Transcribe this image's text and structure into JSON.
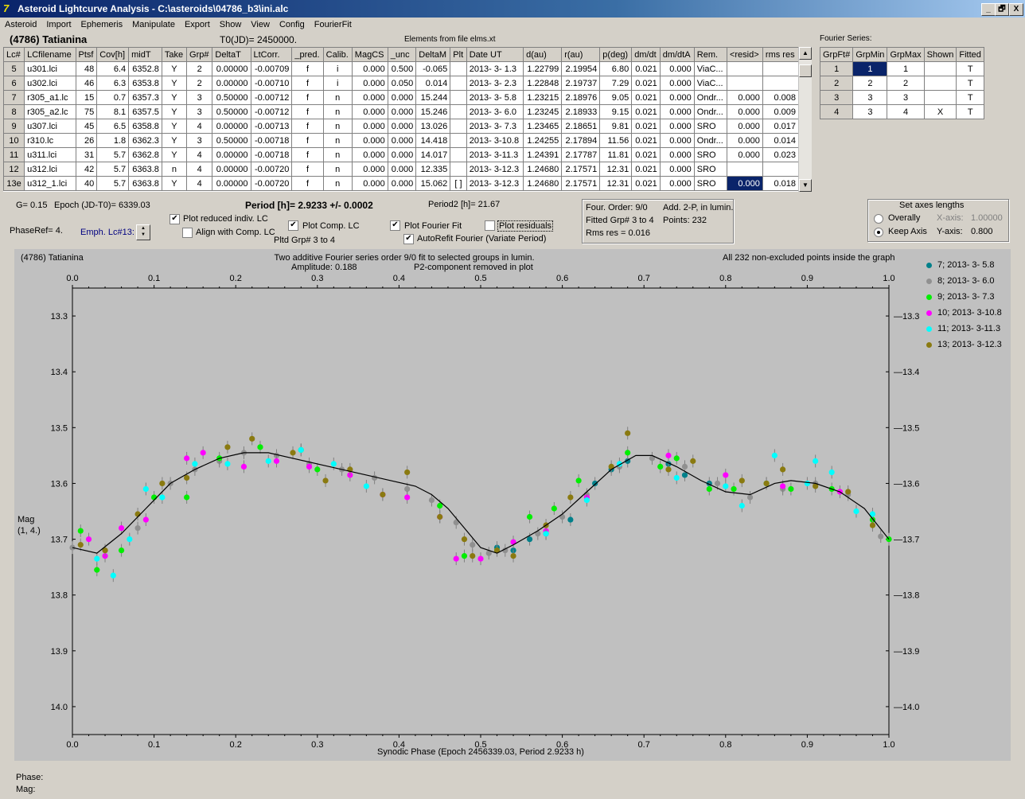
{
  "window": {
    "title": "Asteroid Lightcurve Analysis - C:\\asteroids\\04786_b3\\ini.alc",
    "min": "_",
    "restore": "🗗",
    "close": "X"
  },
  "menu": [
    "Asteroid",
    "Import",
    "Ephemeris",
    "Manipulate",
    "Export",
    "Show",
    "View",
    "Config",
    "FourierFit"
  ],
  "header": {
    "asteroid": "(4786) Tatianina",
    "t0": "T0(JD)= 2450000.",
    "elements": "Elements from file elms.xt",
    "fourier_series": "Fourier Series:"
  },
  "lc_table": {
    "columns": [
      "Lc#",
      "LCfilename",
      "Ptsf",
      "Cov[h]",
      "midT",
      "Take",
      "Grp#",
      "DeltaT",
      "LtCorr.",
      "_pred.",
      "Calib.",
      "MagCS",
      "_unc",
      "DeltaM",
      "Plt",
      "Date UT",
      "d(au)",
      "r(au)",
      "p(deg)",
      "dm/dt",
      "dm/dtA",
      "Rem.",
      "<resid>",
      "rms res"
    ],
    "rows": [
      [
        "5",
        "u301.lci",
        "48",
        "6.4",
        "6352.8",
        "Y",
        "2",
        "0.00000",
        "-0.00709",
        "f",
        "i",
        "0.000",
        "0.500",
        "-0.065",
        "",
        "2013- 3- 1.3",
        "1.22799",
        "2.19954",
        "6.80",
        "0.021",
        "0.000",
        "ViaC...",
        "",
        ""
      ],
      [
        "6",
        "u302.lci",
        "46",
        "6.3",
        "6353.8",
        "Y",
        "2",
        "0.00000",
        "-0.00710",
        "f",
        "i",
        "0.000",
        "0.050",
        "0.014",
        "",
        "2013- 3- 2.3",
        "1.22848",
        "2.19737",
        "7.29",
        "0.021",
        "0.000",
        "ViaC...",
        "",
        ""
      ],
      [
        "7",
        "r305_a1.lc",
        "15",
        "0.7",
        "6357.3",
        "Y",
        "3",
        "0.50000",
        "-0.00712",
        "f",
        "n",
        "0.000",
        "0.000",
        "15.244",
        "",
        "2013- 3- 5.8",
        "1.23215",
        "2.18976",
        "9.05",
        "0.021",
        "0.000",
        "Ondr...",
        "0.000",
        "0.008"
      ],
      [
        "8",
        "r305_a2.lc",
        "75",
        "8.1",
        "6357.5",
        "Y",
        "3",
        "0.50000",
        "-0.00712",
        "f",
        "n",
        "0.000",
        "0.000",
        "15.246",
        "",
        "2013- 3- 6.0",
        "1.23245",
        "2.18933",
        "9.15",
        "0.021",
        "0.000",
        "Ondr...",
        "0.000",
        "0.009"
      ],
      [
        "9",
        "u307.lci",
        "45",
        "6.5",
        "6358.8",
        "Y",
        "4",
        "0.00000",
        "-0.00713",
        "f",
        "n",
        "0.000",
        "0.000",
        "13.026",
        "",
        "2013- 3- 7.3",
        "1.23465",
        "2.18651",
        "9.81",
        "0.021",
        "0.000",
        "SRO",
        "0.000",
        "0.017"
      ],
      [
        "10",
        "r310.lc",
        "26",
        "1.8",
        "6362.3",
        "Y",
        "3",
        "0.50000",
        "-0.00718",
        "f",
        "n",
        "0.000",
        "0.000",
        "14.418",
        "",
        "2013- 3-10.8",
        "1.24255",
        "2.17894",
        "11.56",
        "0.021",
        "0.000",
        "Ondr...",
        "0.000",
        "0.014"
      ],
      [
        "11",
        "u311.lci",
        "31",
        "5.7",
        "6362.8",
        "Y",
        "4",
        "0.00000",
        "-0.00718",
        "f",
        "n",
        "0.000",
        "0.000",
        "14.017",
        "",
        "2013- 3-11.3",
        "1.24391",
        "2.17787",
        "11.81",
        "0.021",
        "0.000",
        "SRO",
        "0.000",
        "0.023"
      ],
      [
        "12",
        "u312.lci",
        "42",
        "5.7",
        "6363.8",
        "n",
        "4",
        "0.00000",
        "-0.00720",
        "f",
        "n",
        "0.000",
        "0.000",
        "12.335",
        "",
        "2013- 3-12.3",
        "1.24680",
        "2.17571",
        "12.31",
        "0.021",
        "0.000",
        "SRO",
        "",
        ""
      ],
      [
        "13e",
        "u312_1.lci",
        "40",
        "5.7",
        "6363.8",
        "Y",
        "4",
        "0.00000",
        "-0.00720",
        "f",
        "n",
        "0.000",
        "0.000",
        "15.062",
        "[ ]",
        "2013- 3-12.3",
        "1.24680",
        "2.17571",
        "12.31",
        "0.021",
        "0.000",
        "SRO",
        "0.000",
        "0.018"
      ]
    ]
  },
  "fourier_table": {
    "columns": [
      "GrpFt#",
      "GrpMin",
      "GrpMax",
      "Shown",
      "Fitted"
    ],
    "rows": [
      [
        "1",
        "1",
        "1",
        "",
        "T"
      ],
      [
        "2",
        "2",
        "2",
        "",
        "T"
      ],
      [
        "3",
        "3",
        "3",
        "",
        "T"
      ],
      [
        "4",
        "3",
        "4",
        "X",
        "T"
      ]
    ]
  },
  "controls": {
    "g": "G= 0.15",
    "epoch": "Epoch (JD-T0)= 6339.03",
    "period": "Period [h]= 2.9233 +/- 0.0002",
    "period2": "Period2 [h]= 21.67",
    "phaseref": "PhaseRef= 4.",
    "emph": "Emph. Lc#13:",
    "plot_reduced": "Plot reduced indiv. LC",
    "align_comp": "Align with Comp. LC",
    "plot_comp": "Plot Comp. LC",
    "pltd_grp": "Pltd Grp#  3  to   4",
    "plot_fourier": "Plot Fourier Fit",
    "autorefit": "AutoRefit Fourier (Variate Period)",
    "plot_resid": "Plot residuals",
    "plot_reduced_checked": true,
    "align_comp_checked": false,
    "plot_comp_checked": true,
    "plot_fourier_checked": true,
    "autorefit_checked": true,
    "plot_resid_checked": false
  },
  "info_box": {
    "four_order": "Four. Order:  9/0",
    "add2p": "Add. 2-P, in lumin.",
    "fitted": "Fitted Grp# 3 to 4",
    "points": "Points: 232",
    "rms": "Rms res     = 0.016"
  },
  "axes_box": {
    "title": "Set axes lengths",
    "overally": "Overally",
    "keep": "Keep Axis",
    "xaxis_label": "X-axis:",
    "xaxis_val": "1.00000",
    "yaxis_label": "Y-axis:",
    "yaxis_val": "0.800",
    "selected": "Keep Axis"
  },
  "plot_header": {
    "left": "(4786) Tatianina",
    "center1": "Two additive Fourier series order 9/0 fit to selected groups in lumin.",
    "center2": "Amplitude: 0.188",
    "center3": "P2-component removed in plot",
    "right": "All 232 non-excluded points inside the graph"
  },
  "status": {
    "phase": "Phase:",
    "mag": "Mag:"
  },
  "chart_data": {
    "type": "scatter",
    "xlabel": "Synodic Phase (Epoch 2456339.03, Period 2.9233 h)",
    "ylabel": "Mag",
    "ylabel2": "(1, 4.)",
    "xlim": [
      0,
      1
    ],
    "ylim": [
      14.05,
      13.25
    ],
    "y_inverted": true,
    "xticks": [
      "0.0",
      "0.1",
      "0.2",
      "0.3",
      "0.4",
      "0.5",
      "0.6",
      "0.7",
      "0.8",
      "0.9",
      "1.0"
    ],
    "yticks": [
      "13.3",
      "13.4",
      "13.5",
      "13.6",
      "13.7",
      "13.8",
      "13.9",
      "14.0"
    ],
    "background": "#c0c0c0",
    "fit_curve": [
      [
        0,
        13.715
      ],
      [
        0.03,
        13.725
      ],
      [
        0.06,
        13.69
      ],
      [
        0.09,
        13.645
      ],
      [
        0.12,
        13.6
      ],
      [
        0.15,
        13.575
      ],
      [
        0.18,
        13.555
      ],
      [
        0.21,
        13.545
      ],
      [
        0.24,
        13.545
      ],
      [
        0.27,
        13.555
      ],
      [
        0.3,
        13.565
      ],
      [
        0.33,
        13.575
      ],
      [
        0.36,
        13.585
      ],
      [
        0.39,
        13.595
      ],
      [
        0.42,
        13.605
      ],
      [
        0.44,
        13.62
      ],
      [
        0.46,
        13.645
      ],
      [
        0.48,
        13.68
      ],
      [
        0.5,
        13.715
      ],
      [
        0.52,
        13.725
      ],
      [
        0.54,
        13.71
      ],
      [
        0.57,
        13.685
      ],
      [
        0.6,
        13.655
      ],
      [
        0.63,
        13.615
      ],
      [
        0.66,
        13.575
      ],
      [
        0.69,
        13.55
      ],
      [
        0.71,
        13.55
      ],
      [
        0.74,
        13.57
      ],
      [
        0.77,
        13.595
      ],
      [
        0.8,
        13.615
      ],
      [
        0.83,
        13.62
      ],
      [
        0.86,
        13.6
      ],
      [
        0.88,
        13.595
      ],
      [
        0.91,
        13.6
      ],
      [
        0.94,
        13.615
      ],
      [
        0.97,
        13.645
      ],
      [
        1.0,
        13.7
      ]
    ],
    "series": [
      {
        "name": "7; 2013- 3- 5.8",
        "color": "#00808a",
        "points": [
          [
            0.52,
            13.715
          ],
          [
            0.54,
            13.72
          ],
          [
            0.56,
            13.7
          ],
          [
            0.58,
            13.69
          ],
          [
            0.61,
            13.665
          ],
          [
            0.64,
            13.6
          ],
          [
            0.66,
            13.575
          ],
          [
            0.68,
            13.56
          ],
          [
            0.73,
            13.565
          ],
          [
            0.75,
            13.585
          ],
          [
            0.78,
            13.6
          ]
        ]
      },
      {
        "name": "8; 2013- 3- 6.0",
        "color": "#909090",
        "points": [
          [
            0.0,
            13.715
          ],
          [
            0.04,
            13.72
          ],
          [
            0.08,
            13.68
          ],
          [
            0.12,
            13.6
          ],
          [
            0.15,
            13.575
          ],
          [
            0.18,
            13.56
          ],
          [
            0.21,
            13.545
          ],
          [
            0.25,
            13.55
          ],
          [
            0.29,
            13.565
          ],
          [
            0.33,
            13.575
          ],
          [
            0.37,
            13.59
          ],
          [
            0.41,
            13.61
          ],
          [
            0.44,
            13.63
          ],
          [
            0.47,
            13.67
          ],
          [
            0.49,
            13.71
          ],
          [
            0.51,
            13.725
          ],
          [
            0.53,
            13.72
          ],
          [
            0.57,
            13.69
          ],
          [
            0.6,
            13.66
          ],
          [
            0.63,
            13.62
          ],
          [
            0.67,
            13.57
          ],
          [
            0.71,
            13.555
          ],
          [
            0.75,
            13.57
          ],
          [
            0.79,
            13.6
          ],
          [
            0.83,
            13.625
          ],
          [
            0.87,
            13.61
          ],
          [
            0.91,
            13.6
          ],
          [
            0.95,
            13.62
          ],
          [
            0.99,
            13.695
          ]
        ]
      },
      {
        "name": "9; 2013- 3- 7.3",
        "color": "#00ee00",
        "points": [
          [
            0.01,
            13.685
          ],
          [
            0.03,
            13.755
          ],
          [
            0.06,
            13.72
          ],
          [
            0.1,
            13.625
          ],
          [
            0.14,
            13.625
          ],
          [
            0.18,
            13.555
          ],
          [
            0.23,
            13.535
          ],
          [
            0.28,
            13.54
          ],
          [
            0.3,
            13.575
          ],
          [
            0.45,
            13.64
          ],
          [
            0.48,
            13.73
          ],
          [
            0.52,
            13.72
          ],
          [
            0.56,
            13.66
          ],
          [
            0.59,
            13.645
          ],
          [
            0.62,
            13.595
          ],
          [
            0.68,
            13.545
          ],
          [
            0.72,
            13.57
          ],
          [
            0.74,
            13.555
          ],
          [
            0.78,
            13.61
          ],
          [
            0.81,
            13.61
          ],
          [
            0.85,
            13.6
          ],
          [
            0.88,
            13.61
          ],
          [
            0.93,
            13.61
          ],
          [
            0.98,
            13.665
          ],
          [
            1.0,
            13.7
          ]
        ]
      },
      {
        "name": "10; 2013- 3-10.8",
        "color": "#ff00ff",
        "points": [
          [
            0.02,
            13.7
          ],
          [
            0.04,
            13.73
          ],
          [
            0.06,
            13.68
          ],
          [
            0.09,
            13.665
          ],
          [
            0.14,
            13.555
          ],
          [
            0.16,
            13.545
          ],
          [
            0.21,
            13.57
          ],
          [
            0.25,
            13.56
          ],
          [
            0.29,
            13.57
          ],
          [
            0.34,
            13.585
          ],
          [
            0.38,
            13.62
          ],
          [
            0.41,
            13.625
          ],
          [
            0.45,
            13.66
          ],
          [
            0.47,
            13.735
          ],
          [
            0.5,
            13.735
          ],
          [
            0.54,
            13.705
          ],
          [
            0.58,
            13.685
          ],
          [
            0.63,
            13.625
          ],
          [
            0.73,
            13.55
          ],
          [
            0.8,
            13.585
          ],
          [
            0.87,
            13.605
          ],
          [
            0.94,
            13.615
          ]
        ]
      },
      {
        "name": "11; 2013- 3-11.3",
        "color": "#00ffff",
        "points": [
          [
            0.03,
            13.735
          ],
          [
            0.05,
            13.765
          ],
          [
            0.07,
            13.7
          ],
          [
            0.09,
            13.61
          ],
          [
            0.11,
            13.625
          ],
          [
            0.15,
            13.565
          ],
          [
            0.19,
            13.565
          ],
          [
            0.24,
            13.56
          ],
          [
            0.28,
            13.54
          ],
          [
            0.32,
            13.565
          ],
          [
            0.36,
            13.605
          ],
          [
            0.58,
            13.69
          ],
          [
            0.63,
            13.63
          ],
          [
            0.67,
            13.565
          ],
          [
            0.74,
            13.59
          ],
          [
            0.8,
            13.605
          ],
          [
            0.82,
            13.64
          ],
          [
            0.86,
            13.55
          ],
          [
            0.9,
            13.6
          ],
          [
            0.91,
            13.56
          ],
          [
            0.93,
            13.58
          ],
          [
            0.96,
            13.65
          ],
          [
            0.98,
            13.655
          ]
        ]
      },
      {
        "name": "13; 2013- 3-12.3",
        "color": "#8a7a10",
        "points": [
          [
            0.01,
            13.71
          ],
          [
            0.04,
            13.72
          ],
          [
            0.08,
            13.655
          ],
          [
            0.11,
            13.6
          ],
          [
            0.14,
            13.59
          ],
          [
            0.19,
            13.535
          ],
          [
            0.22,
            13.52
          ],
          [
            0.27,
            13.545
          ],
          [
            0.31,
            13.595
          ],
          [
            0.34,
            13.575
          ],
          [
            0.38,
            13.62
          ],
          [
            0.41,
            13.58
          ],
          [
            0.45,
            13.66
          ],
          [
            0.48,
            13.7
          ],
          [
            0.49,
            13.73
          ],
          [
            0.52,
            13.72
          ],
          [
            0.54,
            13.73
          ],
          [
            0.58,
            13.675
          ],
          [
            0.61,
            13.625
          ],
          [
            0.66,
            13.57
          ],
          [
            0.68,
            13.51
          ],
          [
            0.73,
            13.575
          ],
          [
            0.76,
            13.56
          ],
          [
            0.82,
            13.595
          ],
          [
            0.85,
            13.6
          ],
          [
            0.87,
            13.575
          ],
          [
            0.91,
            13.605
          ],
          [
            0.95,
            13.615
          ],
          [
            0.98,
            13.675
          ]
        ]
      }
    ]
  }
}
